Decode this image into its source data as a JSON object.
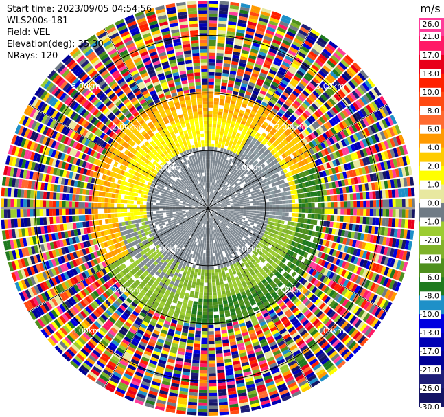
{
  "header": {
    "start_time": "Start time: 2023/09/05 04:54:56",
    "instrument": "WLS200s-181",
    "field": "Field: VEL",
    "elevation": "Elevation(deg): 35.30",
    "nrays": "NRays: 120"
  },
  "chart_data": {
    "type": "heatmap",
    "projection": "polar-ppi",
    "field": "VEL",
    "units": "m/s",
    "elevation_deg": 35.3,
    "n_rays": 120,
    "max_range_km": 3.6,
    "range_rings_km": [
      1.0,
      2.0,
      3.0
    ],
    "ring_labels": [
      "1.00km",
      "2.00km",
      "3.00km"
    ],
    "colorbar": {
      "title": "m/s",
      "tick_labels": [
        "26.0",
        "21.0",
        "17.0",
        "13.0",
        "10.0",
        "8.0",
        "6.0",
        "4.0",
        "2.0",
        "1.0",
        "0.0",
        "-1.0",
        "-2.0",
        "-4.0",
        "-6.0",
        "-8.0",
        "-10.0",
        "-13.0",
        "-17.0",
        "-21.0",
        "-26.0",
        "-30.0"
      ],
      "colors": [
        "#ff3d9a",
        "#ff1a66",
        "#e8001a",
        "#ff2200",
        "#ff4a12",
        "#ff6a30",
        "#ff9a00",
        "#ffcc00",
        "#ffff00",
        "#e8e8a0",
        "#707b85",
        "#9ccc32",
        "#7fb22a",
        "#4e8f1e",
        "#1f7a1f",
        "#1e90c8",
        "#0000e0",
        "#0000b4",
        "#000096",
        "#1e1e78",
        "#141464"
      ]
    },
    "grid": true
  }
}
